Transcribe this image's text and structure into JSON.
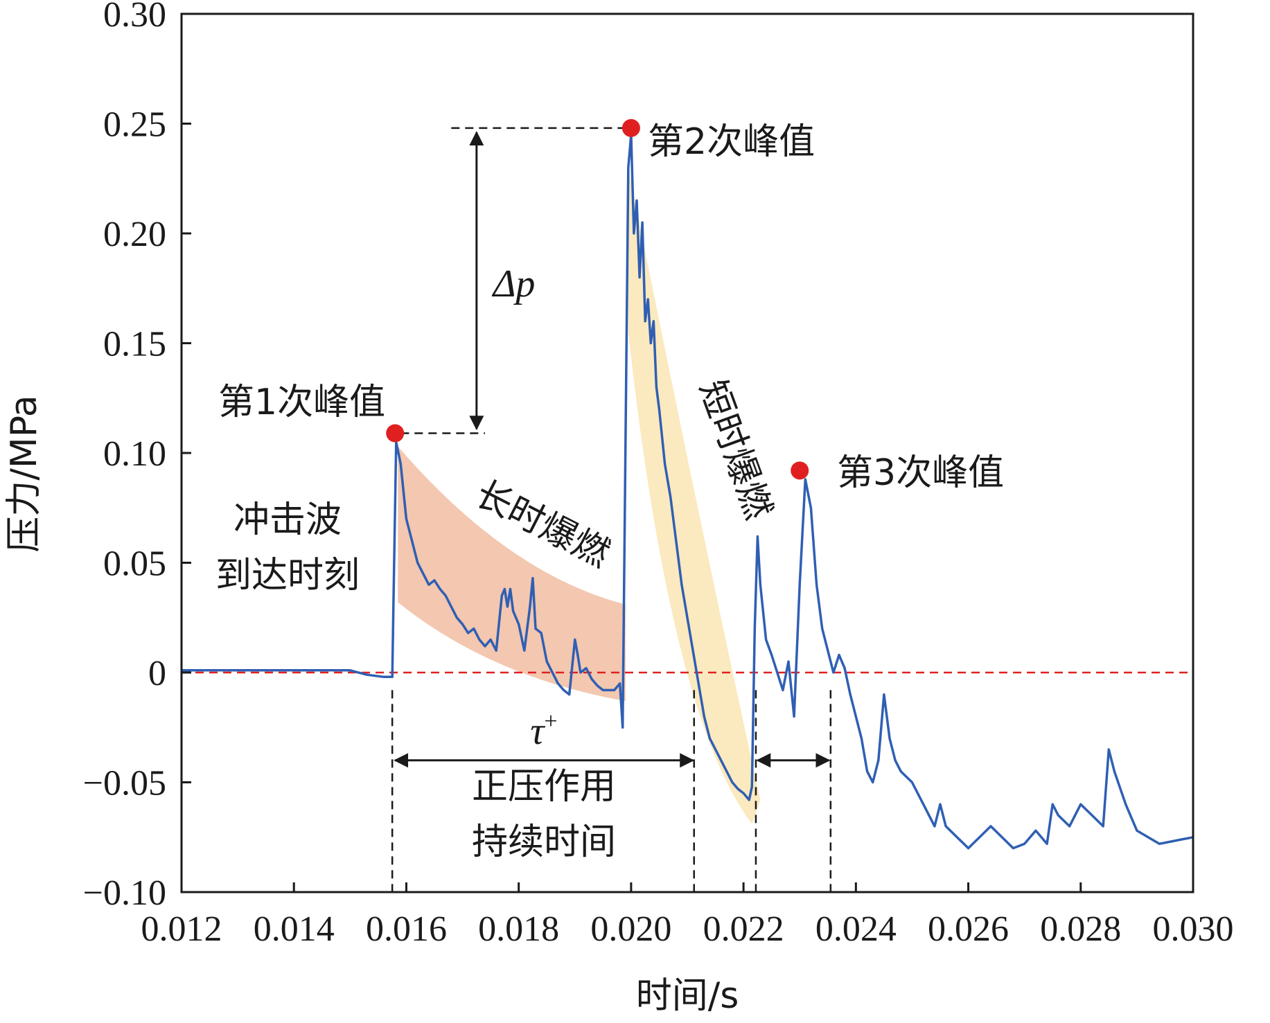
{
  "chart_data": {
    "type": "line",
    "xlabel": "时间/s",
    "ylabel": "压力/MPa",
    "xlim": [
      0.012,
      0.03
    ],
    "ylim": [
      -0.1,
      0.3
    ],
    "x_ticks": [
      0.012,
      0.014,
      0.016,
      0.018,
      0.02,
      0.022,
      0.024,
      0.026,
      0.028,
      0.03
    ],
    "x_tick_labels": [
      "0.012",
      "0.014",
      "0.016",
      "0.018",
      "0.020",
      "0.022",
      "0.024",
      "0.026",
      "0.028",
      "0.030"
    ],
    "y_ticks": [
      -0.1,
      -0.05,
      0,
      0.05,
      0.1,
      0.15,
      0.2,
      0.25,
      0.3
    ],
    "y_tick_labels": [
      "−0.10",
      "−0.05",
      "0",
      "0.05",
      "0.10",
      "0.15",
      "0.20",
      "0.25",
      "0.30"
    ],
    "grid": false,
    "colors": {
      "line": "#2f5fb3",
      "peak": "#e02020",
      "zero_line": "#e02020",
      "long_band": "#f3c7b0",
      "short_band": "#fbe9bf"
    },
    "series": [
      {
        "x": [
          0.012,
          0.0135,
          0.015,
          0.0153,
          0.0156,
          0.01575,
          0.01577,
          0.01582,
          0.0159,
          0.016,
          0.0161,
          0.0162,
          0.0163,
          0.0164,
          0.0165,
          0.0166,
          0.0167,
          0.0168,
          0.0169,
          0.017,
          0.0171,
          0.0172,
          0.0173,
          0.0174,
          0.0175,
          0.0176,
          0.0177,
          0.01775,
          0.0178,
          0.01785,
          0.0179,
          0.018,
          0.0181,
          0.0182,
          0.01825,
          0.0183,
          0.0184,
          0.0185,
          0.0186,
          0.0187,
          0.0188,
          0.0189,
          0.019,
          0.01905,
          0.0191,
          0.0192,
          0.0193,
          0.0194,
          0.0195,
          0.0196,
          0.0197,
          0.0198,
          0.01985,
          0.01995,
          0.02,
          0.02005,
          0.0201,
          0.02015,
          0.0202,
          0.02025,
          0.0203,
          0.02035,
          0.0204,
          0.02045,
          0.0205,
          0.0206,
          0.0207,
          0.0208,
          0.0209,
          0.021,
          0.0211,
          0.0212,
          0.0213,
          0.0214,
          0.0215,
          0.0216,
          0.0217,
          0.0218,
          0.0219,
          0.022,
          0.0221,
          0.02215,
          0.0222,
          0.02225,
          0.0223,
          0.0224,
          0.0225,
          0.0226,
          0.0227,
          0.0228,
          0.0229,
          0.023,
          0.0231,
          0.0232,
          0.0233,
          0.0234,
          0.0235,
          0.0236,
          0.0237,
          0.0238,
          0.0239,
          0.024,
          0.0241,
          0.0242,
          0.0243,
          0.0244,
          0.0245,
          0.0246,
          0.0247,
          0.0248,
          0.025,
          0.0252,
          0.0254,
          0.0255,
          0.0256,
          0.0258,
          0.026,
          0.0262,
          0.0264,
          0.0266,
          0.0268,
          0.027,
          0.0272,
          0.0274,
          0.0275,
          0.0276,
          0.0278,
          0.028,
          0.0282,
          0.0284,
          0.0285,
          0.0286,
          0.0288,
          0.029,
          0.0292,
          0.0294,
          0.0296,
          0.0298,
          0.03
        ],
        "y": [
          0.001,
          0.001,
          0.001,
          -0.001,
          -0.002,
          -0.002,
          0.03,
          0.105,
          0.095,
          0.07,
          0.06,
          0.05,
          0.045,
          0.04,
          0.042,
          0.038,
          0.035,
          0.03,
          0.025,
          0.022,
          0.018,
          0.02,
          0.015,
          0.012,
          0.015,
          0.01,
          0.035,
          0.038,
          0.03,
          0.038,
          0.028,
          0.022,
          0.01,
          0.03,
          0.043,
          0.02,
          0.018,
          0.005,
          0.0,
          -0.005,
          -0.008,
          -0.01,
          0.015,
          0.008,
          0.0,
          0.002,
          -0.003,
          -0.006,
          -0.008,
          -0.008,
          -0.008,
          -0.005,
          -0.025,
          0.23,
          0.245,
          0.2,
          0.215,
          0.18,
          0.205,
          0.16,
          0.17,
          0.15,
          0.16,
          0.13,
          0.12,
          0.095,
          0.08,
          0.06,
          0.04,
          0.025,
          0.01,
          -0.005,
          -0.02,
          -0.03,
          -0.035,
          -0.04,
          -0.045,
          -0.05,
          -0.053,
          -0.055,
          -0.058,
          -0.052,
          0.02,
          0.062,
          0.04,
          0.015,
          0.008,
          0.0,
          -0.008,
          0.005,
          -0.02,
          0.04,
          0.088,
          0.075,
          0.04,
          0.02,
          0.01,
          0.0,
          0.008,
          0.002,
          -0.01,
          -0.02,
          -0.03,
          -0.045,
          -0.05,
          -0.04,
          -0.01,
          -0.03,
          -0.04,
          -0.045,
          -0.05,
          -0.06,
          -0.07,
          -0.06,
          -0.07,
          -0.075,
          -0.08,
          -0.075,
          -0.07,
          -0.075,
          -0.08,
          -0.078,
          -0.072,
          -0.078,
          -0.06,
          -0.065,
          -0.07,
          -0.06,
          -0.065,
          -0.07,
          -0.035,
          -0.045,
          -0.06,
          -0.072,
          -0.075,
          -0.078,
          -0.077,
          -0.076,
          -0.075
        ]
      }
    ],
    "peaks": [
      {
        "label": "第1次峰值",
        "x": 0.0158,
        "y": 0.109
      },
      {
        "label": "第2次峰值",
        "x": 0.02,
        "y": 0.248
      },
      {
        "label": "第3次峰值",
        "x": 0.023,
        "y": 0.092
      }
    ],
    "annotations": {
      "arrival": [
        "冲击波",
        "到达时刻"
      ],
      "long_burn": "长时爆燃",
      "short_burn": "短时爆燃",
      "delta_p": "Δp",
      "tau": "τ",
      "tau_sup": "+",
      "positive_duration": [
        "正压作用",
        "持续时间"
      ]
    }
  }
}
